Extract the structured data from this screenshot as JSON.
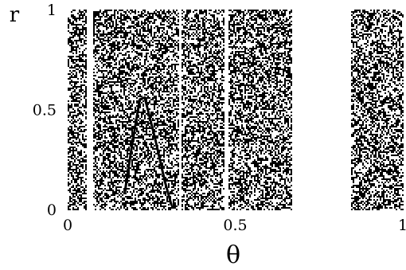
{
  "chart_data": {
    "type": "scatter",
    "xlabel": "θ",
    "ylabel": "r",
    "xlim": [
      0,
      1
    ],
    "ylim": [
      0,
      1
    ],
    "x_ticks": [
      "0",
      "0.5",
      "1"
    ],
    "y_ticks": [
      "0",
      "0.5",
      "1"
    ],
    "grid": false,
    "marker_color": "#000000",
    "point_density": 0.5,
    "filled_x_intervals": [
      [
        0.0,
        0.055
      ],
      [
        0.075,
        0.33
      ],
      [
        0.34,
        0.465
      ],
      [
        0.48,
        0.67
      ],
      [
        0.845,
        1.0
      ]
    ],
    "empty_x_gaps": [
      [
        0.055,
        0.075
      ],
      [
        0.33,
        0.34
      ],
      [
        0.465,
        0.48
      ],
      [
        0.67,
        0.845
      ]
    ],
    "annotations": [
      {
        "shape": "curve",
        "color": "#000000",
        "points": [
          [
            0.17,
            0.08
          ],
          [
            0.19,
            0.3
          ],
          [
            0.215,
            0.55
          ],
          [
            0.23,
            0.56
          ],
          [
            0.26,
            0.36
          ],
          [
            0.29,
            0.14
          ],
          [
            0.31,
            0.02
          ]
        ]
      }
    ]
  }
}
